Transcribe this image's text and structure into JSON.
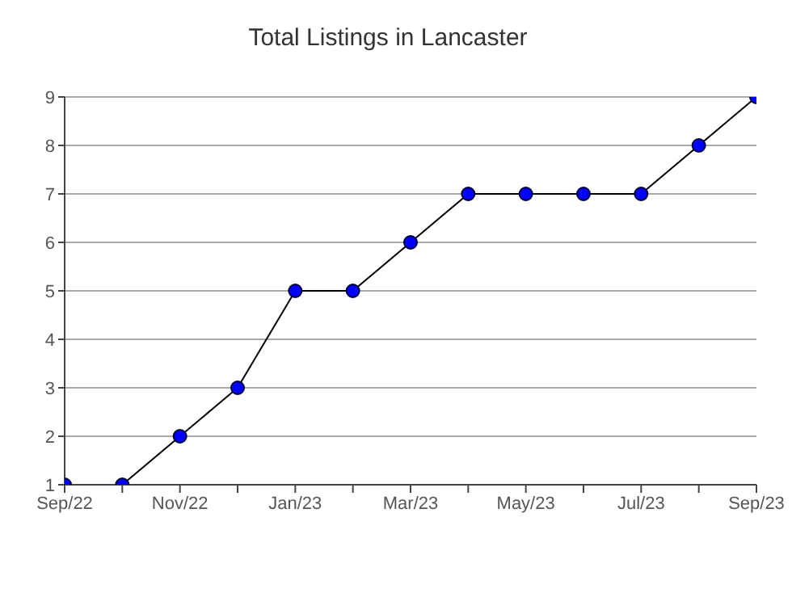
{
  "chart_data": {
    "type": "line",
    "title": "Total Listings in Lancaster",
    "categories": [
      "Sep/22",
      null,
      "Nov/22",
      null,
      "Jan/23",
      null,
      "Mar/23",
      null,
      "May/23",
      null,
      "Jul/23",
      null,
      "Sep/23"
    ],
    "series": [
      {
        "color": "#0000ff",
        "values": [
          1,
          1,
          2,
          3,
          5,
          5,
          6,
          7,
          7,
          7,
          7,
          8,
          9
        ]
      }
    ],
    "ylim": [
      1,
      9
    ],
    "yticks": [
      1,
      2,
      3,
      4,
      5,
      6,
      7,
      8,
      9
    ],
    "grid": "y",
    "marker": "circle",
    "line_style": "solid"
  }
}
